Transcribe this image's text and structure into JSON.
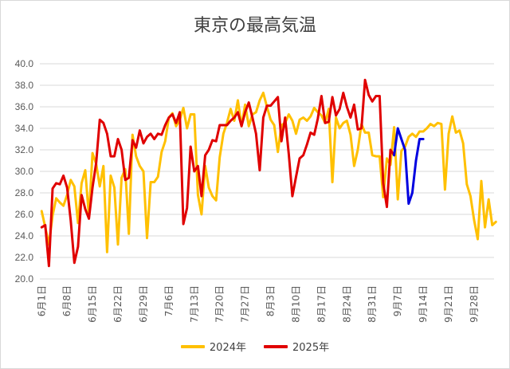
{
  "chart_data": {
    "type": "line",
    "title": "東京の最高気温",
    "ylim": [
      20.0,
      40.0
    ],
    "y_ticks": [
      "20.0",
      "22.0",
      "24.0",
      "26.0",
      "28.0",
      "30.0",
      "32.0",
      "34.0",
      "36.0",
      "38.0",
      "40.0"
    ],
    "x_labels": [
      "6月1日",
      "6月8日",
      "6月15日",
      "6月22日",
      "6月29日",
      "7月6日",
      "7月13日",
      "7月20日",
      "7月27日",
      "8月3日",
      "8月10日",
      "8月17日",
      "8月24日",
      "8月31日",
      "9月7日",
      "9月14日",
      "9月21日",
      "9月28日"
    ],
    "x_start": "6月1日",
    "grid": "horizontal",
    "legend_position": "bottom",
    "series": [
      {
        "name": "2024年",
        "color": "#ffc000",
        "values": [
          26.3,
          24.8,
          23.2,
          25.9,
          27.5,
          27.1,
          26.8,
          27.8,
          29.2,
          28.6,
          25.2,
          28.9,
          30.1,
          25.8,
          31.7,
          30.7,
          28.6,
          30.5,
          22.5,
          29.6,
          28.5,
          23.2,
          29.4,
          30.2,
          24.2,
          33.4,
          31.4,
          30.5,
          30.0,
          23.8,
          29.0,
          29.0,
          29.5,
          31.8,
          32.8,
          35.0,
          35.4,
          34.2,
          34.8,
          35.9,
          34.0,
          35.3,
          35.3,
          27.8,
          26.0,
          30.5,
          28.5,
          27.7,
          27.3,
          31.3,
          33.5,
          34.5,
          35.8,
          34.7,
          36.6,
          34.2,
          36.2,
          34.2,
          35.3,
          35.5,
          36.6,
          37.3,
          36.0,
          34.8,
          34.3,
          31.8,
          34.3,
          34.5,
          35.3,
          34.7,
          33.5,
          34.8,
          35.0,
          34.7,
          35.1,
          35.9,
          35.5,
          35.2,
          34.5,
          35.8,
          29.0,
          35.0,
          34.0,
          34.5,
          34.7,
          33.4,
          30.5,
          32.0,
          34.4,
          33.6,
          33.6,
          31.5,
          31.4,
          31.4,
          27.6,
          31.2,
          30.6,
          34.1,
          27.4,
          31.9,
          32.3,
          33.2,
          33.5,
          33.2,
          33.7,
          33.7,
          34.0,
          34.4,
          34.2,
          34.5,
          34.4,
          28.3,
          33.5,
          35.1,
          33.6,
          33.8,
          32.6,
          28.8,
          27.7,
          25.5,
          23.7,
          29.1,
          24.8,
          27.4,
          25.0,
          25.3
        ]
      },
      {
        "name": "2025年",
        "color": "#e00000",
        "values": [
          24.8,
          25.0,
          21.2,
          28.4,
          28.9,
          28.8,
          29.6,
          28.5,
          25.4,
          21.5,
          23.0,
          27.8,
          26.5,
          25.6,
          28.5,
          30.8,
          34.8,
          34.5,
          33.5,
          31.4,
          31.4,
          33.0,
          32.0,
          29.2,
          29.4,
          32.9,
          32.2,
          33.8,
          32.6,
          33.2,
          33.5,
          33.0,
          33.5,
          33.4,
          34.3,
          35.0,
          35.3,
          34.5,
          35.5,
          25.1,
          26.6,
          32.3,
          30.0,
          30.5,
          27.7,
          31.5,
          32.0,
          32.9,
          32.8,
          34.3,
          34.3,
          34.3,
          34.7,
          35.0,
          35.5,
          34.2,
          35.5,
          36.4,
          35.0,
          33.5,
          30.1,
          35.0,
          36.1,
          36.1,
          36.5,
          36.9,
          32.8,
          35.0,
          31.6,
          27.7,
          29.5,
          31.2,
          31.5,
          32.5,
          33.6,
          33.4,
          34.9,
          37.0,
          34.5,
          34.6,
          36.9,
          35.2,
          35.8,
          37.3,
          36.0,
          35.0,
          36.2,
          33.9,
          34.0,
          38.5,
          37.1,
          36.5,
          37.0,
          37.0,
          28.9,
          26.7,
          32.0,
          31.5
        ],
        "highlight": {
          "color": "#0000e0",
          "start_index": 97,
          "values": [
            31.5,
            34.0,
            33.0,
            32.0,
            27.0,
            28.0,
            31.0,
            33.0,
            33.0
          ]
        }
      }
    ]
  }
}
